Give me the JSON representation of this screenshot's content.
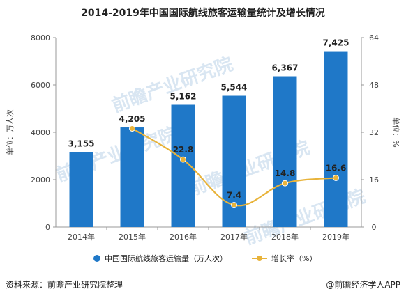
{
  "title": "2014-2019年中国国际航线旅客运输量统计及增长情况",
  "footer": {
    "source": "资料来源：前瞻产业研究院整理",
    "credit": "@前瞻经济学人APP"
  },
  "watermark": "前瞻产业研究院",
  "chart_data": {
    "type": "bar",
    "categories": [
      "2014年",
      "2015年",
      "2016年",
      "2017年",
      "2018年",
      "2019年"
    ],
    "series": [
      {
        "name": "中国国际航线旅客运输量（万人次）",
        "type": "bar",
        "axis": "left",
        "values": [
          3155,
          4205,
          5162,
          5544,
          6367,
          7425
        ],
        "labels": [
          "3,155",
          "4,205",
          "5,162",
          "5,544",
          "6,367",
          "7,425"
        ],
        "color": "#1f78c8"
      },
      {
        "name": "增长率（%）",
        "type": "line",
        "axis": "right",
        "x": [
          "2015年",
          "2016年",
          "2017年",
          "2018年",
          "2019年"
        ],
        "values": [
          33.3,
          22.8,
          7.4,
          14.8,
          16.6
        ],
        "labels": [
          "",
          "22.8",
          "7.4",
          "14.8",
          "16.6"
        ],
        "color": "#e8b33a"
      }
    ],
    "ylabel": "单位：万人次",
    "ylabel_right": "单位：%",
    "ylim": [
      0,
      8000
    ],
    "ylim_right": [
      0,
      64
    ],
    "yticks": [
      "0",
      "2000",
      "4000",
      "6000",
      "8000"
    ],
    "yticks_right": [
      "0",
      "16",
      "32",
      "48",
      "64"
    ],
    "legend_position": "bottom",
    "grid": false
  }
}
